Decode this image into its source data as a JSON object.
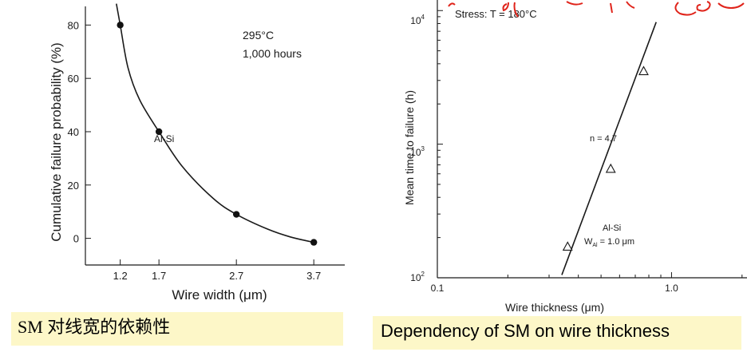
{
  "chart_data": [
    {
      "type": "scatter",
      "title": "",
      "xlabel": "Wire width (μm)",
      "ylabel": "Cumulative failure probability (%)",
      "x_ticks": [
        1.2,
        1.7,
        2.7,
        3.7
      ],
      "x_tick_labels": [
        "1.2",
        "1.7",
        "2.7",
        "3.7"
      ],
      "y_ticks": [
        0,
        20,
        40,
        60,
        80
      ],
      "y_tick_labels": [
        "0",
        "20",
        "40",
        "60",
        "80"
      ],
      "xlim": [
        0.75,
        4.1
      ],
      "ylim": [
        -10,
        87
      ],
      "series": [
        {
          "name": "Al-Si",
          "x": [
            1.2,
            1.7,
            2.7,
            3.7
          ],
          "y": [
            80,
            40,
            9,
            -1.5
          ]
        }
      ],
      "fit_curve": {
        "x": [
          1.15,
          1.2,
          1.3,
          1.45,
          1.7,
          2.0,
          2.4,
          2.7,
          3.1,
          3.4,
          3.7
        ],
        "y": [
          88,
          80,
          64,
          52,
          40,
          27,
          15,
          9,
          3.5,
          0.5,
          -1.5
        ]
      },
      "annotations": [
        "295°C",
        "1,000 hours",
        "Al-Si"
      ]
    },
    {
      "type": "scatter",
      "title": "",
      "xlabel": "Wire thickness (μm)",
      "ylabel": "Mean time to failure (h)",
      "x_scale": "log",
      "y_scale": "log",
      "x_tick_labels": [
        "0.1",
        "1.0"
      ],
      "y_tick_labels": [
        "10²",
        "10³",
        "10⁴"
      ],
      "xlim": [
        0.1,
        2.1
      ],
      "ylim": [
        100,
        12000
      ],
      "series": [
        {
          "name": "Al-Si",
          "x": [
            0.36,
            0.55,
            0.76
          ],
          "y": [
            170,
            650,
            3500
          ]
        }
      ],
      "fit_line": {
        "x": [
          0.34,
          0.86
        ],
        "y": [
          105,
          8200
        ]
      },
      "annotations": [
        "Stress: T = 180°C",
        "n = 4.7",
        "Al-Si",
        "W_Al = 1.0 μm"
      ]
    }
  ],
  "captions": {
    "left": "SM 对线宽的依赖性",
    "right": "Dependency of SM on wire thickness"
  },
  "labels": {
    "left_temp": "295°C",
    "left_time": "1,000 hours",
    "left_series": "Al-Si",
    "right_stress": "Stress: T = 180°C",
    "right_n": "n = 4.7",
    "right_series": "Al-Si",
    "right_width": "W",
    "right_width_sub": "Al",
    "right_width_val": " = 1.0 μm",
    "right_y_10_2_base": "10",
    "right_y_10_2_exp": "2",
    "right_y_10_3_base": "10",
    "right_y_10_3_exp": "3",
    "right_y_10_4_base": "10",
    "right_y_10_4_exp": "4"
  },
  "colors": {
    "caption_bg": "#fdf7c8",
    "ink": "#1a1a1a",
    "scribble": "#e0241b"
  }
}
